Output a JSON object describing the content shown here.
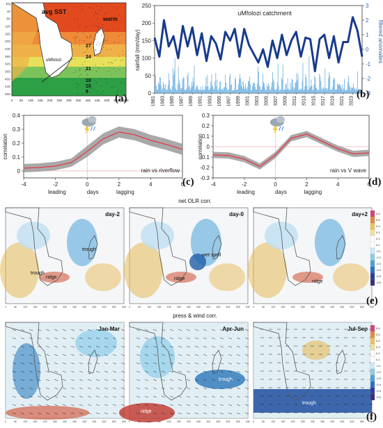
{
  "colors": {
    "rain_bars": "#6aaee0",
    "filtered_line": "#173b8c",
    "corr_line": "#e63946",
    "corr_band": "#9a9a9a",
    "warm_sst": "#e24a1d",
    "cool_sst": "#2d9f45",
    "olr_wet": "#4da3d8",
    "olr_dry": "#e8b956",
    "ridge": "#d04a2c",
    "trough": "#2164b8"
  },
  "panel_a": {
    "title": "avg SST",
    "warm_label": "warm",
    "place": "uMfolozi",
    "isotherms": [
      "27",
      "24",
      "21",
      "18",
      "15",
      "9"
    ],
    "x_ticks": [
      "0",
      "5E",
      "10E",
      "15E",
      "20E",
      "25E",
      "30E",
      "35E",
      "40E",
      "45E",
      "50E",
      "55E",
      "60E"
    ],
    "y_ticks": [
      "EQ",
      "4S",
      "8S",
      "12S",
      "16S",
      "20S",
      "24S",
      "28S",
      "32S",
      "36S",
      "40S",
      "44S",
      "48S"
    ],
    "label": "(a)"
  },
  "chart_data": [
    {
      "id": "b",
      "type": "bar+line",
      "title": "uMfolozi catchment",
      "ylabel": "rainfall (mm/day)",
      "y2label": "filtered anomalies",
      "xlim": [
        1981,
        2025
      ],
      "ylim": [
        0,
        250
      ],
      "y2lim": [
        -3,
        3
      ],
      "x_ticks": [
        "1981",
        "1983",
        "1985",
        "1987",
        "1989",
        "1991",
        "1993",
        "1995",
        "1997",
        "1999",
        "2001",
        "2003",
        "2005",
        "2007",
        "2009",
        "2011",
        "2013",
        "2015",
        "2017",
        "2019",
        "2021",
        "2023"
      ],
      "y_ticks": [
        "0",
        "50",
        "100",
        "150",
        "200",
        "250"
      ],
      "y2_ticks": [
        "-3",
        "-2",
        "-1",
        "0",
        "1",
        "2",
        "3"
      ],
      "filtered_series": {
        "x": [
          1981,
          1982,
          1983,
          1984,
          1985,
          1986,
          1987,
          1988,
          1989,
          1990,
          1991,
          1992,
          1993,
          1994,
          1995,
          1996,
          1997,
          1998,
          1999,
          2000,
          2001,
          2002,
          2003,
          2004,
          2005,
          2006,
          2007,
          2008,
          2009,
          2010,
          2011,
          2012,
          2013,
          2014,
          2015,
          2016,
          2017,
          2018,
          2019,
          2020,
          2021,
          2022,
          2023,
          2024,
          2025
        ],
        "values": [
          0.8,
          -0.5,
          2.0,
          0.2,
          0.9,
          -0.6,
          1.6,
          0.2,
          1.5,
          -0.4,
          1.1,
          -0.8,
          0.9,
          0.4,
          -0.7,
          1.2,
          0.6,
          1.4,
          -0.5,
          1.4,
          0.3,
          -0.3,
          -0.9,
          0.0,
          -1.2,
          0.6,
          -0.6,
          1.0,
          -0.4,
          0.6,
          1.2,
          -0.5,
          0.8,
          0.7,
          -1.5,
          0.7,
          1.0,
          -0.6,
          0.9,
          -0.9,
          0.5,
          0.5,
          2.2,
          1.3,
          -0.5
        ]
      },
      "label": "(b)"
    },
    {
      "id": "c",
      "type": "line",
      "annotation": "rain vs riverflow",
      "ylabel": "correlation",
      "xlim": [
        -4,
        6
      ],
      "ylim": [
        -0.05,
        0.4
      ],
      "x_ticks": [
        "-4",
        "-2",
        "0",
        "2",
        "4",
        "6"
      ],
      "y_ticks": [
        "0",
        "0.1",
        "0.2",
        "0.3",
        "0.4"
      ],
      "x_words": [
        "leading",
        "days",
        "lagging"
      ],
      "x": [
        -4,
        -3,
        -2,
        -1,
        0,
        1,
        2,
        3,
        4,
        5,
        6
      ],
      "mean": [
        0.02,
        0.025,
        0.035,
        0.06,
        0.14,
        0.23,
        0.28,
        0.26,
        0.22,
        0.19,
        0.155
      ],
      "lower": [
        -0.01,
        -0.005,
        0.005,
        0.03,
        0.1,
        0.19,
        0.24,
        0.22,
        0.18,
        0.15,
        0.115
      ],
      "upper": [
        0.05,
        0.055,
        0.065,
        0.09,
        0.18,
        0.27,
        0.32,
        0.3,
        0.26,
        0.23,
        0.195
      ],
      "label": "(c)"
    },
    {
      "id": "d",
      "type": "line",
      "annotation": "rain vs V wave",
      "ylabel": "correlation",
      "xlim": [
        -4,
        6
      ],
      "ylim": [
        -0.3,
        0.3
      ],
      "x_ticks": [
        "-4",
        "-2",
        "0",
        "2",
        "4",
        "6"
      ],
      "y_ticks": [
        "-0.3",
        "-0.2",
        "-0.1",
        "0",
        "0.1",
        "0.2",
        "0.3"
      ],
      "x_words": [
        "leading",
        "days",
        "lagging"
      ],
      "x": [
        -4,
        -3,
        -2,
        -1,
        0,
        1,
        2,
        3,
        4,
        5,
        6
      ],
      "mean": [
        -0.08,
        -0.085,
        -0.12,
        -0.19,
        -0.08,
        0.08,
        0.12,
        0.05,
        -0.02,
        -0.07,
        -0.06
      ],
      "lower": [
        -0.11,
        -0.115,
        -0.15,
        -0.22,
        -0.11,
        0.05,
        0.09,
        0.02,
        -0.05,
        -0.1,
        -0.09
      ],
      "upper": [
        -0.05,
        -0.055,
        -0.09,
        -0.16,
        -0.05,
        0.11,
        0.15,
        0.08,
        0.01,
        -0.04,
        -0.03
      ],
      "label": "(d)"
    }
  ],
  "panel_e": {
    "row_title": "net OLR corr.",
    "maps": [
      {
        "title": "day-2",
        "labels": [
          "trough",
          "trough",
          "ridge"
        ]
      },
      {
        "title": "day-0",
        "labels": [
          "wet spell",
          "ridge"
        ]
      },
      {
        "title": "day+2",
        "labels": [
          "ridge"
        ]
      }
    ],
    "colorbar_ticks": [
      "0.6",
      "0.5",
      "0.4",
      "0.3",
      "0.2",
      "0.1",
      "-0.1",
      "-0.2",
      "-0.3",
      "-0.4",
      "-0.5",
      "-0.6"
    ],
    "label": "(e)"
  },
  "panel_f": {
    "row_title": "press & wind corr.",
    "maps": [
      {
        "title": "Jan-Mar",
        "labels": []
      },
      {
        "title": "Apr-Jun",
        "labels": [
          "trough",
          "ridge"
        ]
      },
      {
        "title": "Jul-Sep",
        "labels": [
          "trough"
        ]
      }
    ],
    "colorbar_ticks": [
      "0.6",
      "0.5",
      "0.4",
      "0.3",
      "0.2",
      "0.1",
      "-0.1",
      "-0.2",
      "-0.3",
      "-0.4",
      "-0.5",
      "-0.6"
    ],
    "label": "(f)"
  }
}
